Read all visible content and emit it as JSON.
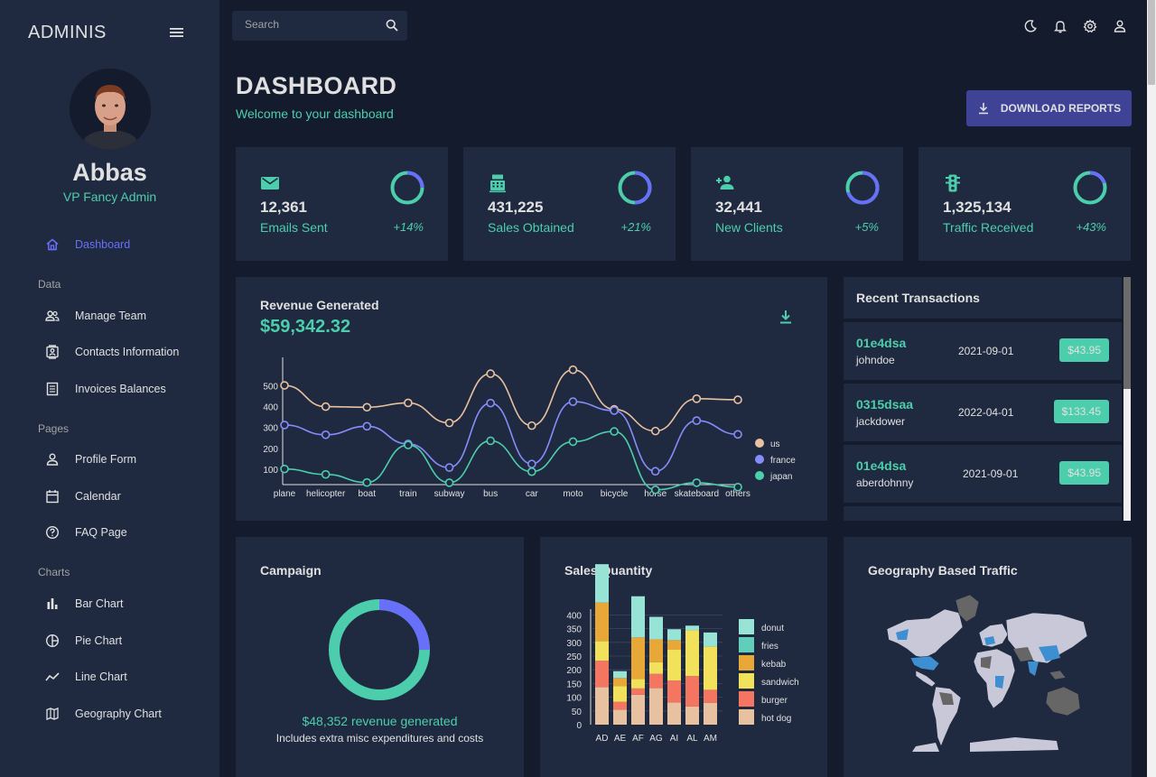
{
  "sidebar": {
    "brand": "ADMINIS",
    "user": {
      "name": "Abbas",
      "role": "VP Fancy Admin"
    },
    "items": [
      {
        "label": "Dashboard",
        "icon": "home-icon",
        "active": true
      },
      {
        "section": "Data"
      },
      {
        "label": "Manage Team",
        "icon": "people-icon"
      },
      {
        "label": "Contacts Information",
        "icon": "contacts-icon"
      },
      {
        "label": "Invoices Balances",
        "icon": "receipt-icon"
      },
      {
        "section": "Pages"
      },
      {
        "label": "Profile Form",
        "icon": "person-icon"
      },
      {
        "label": "Calendar",
        "icon": "calendar-icon"
      },
      {
        "label": "FAQ Page",
        "icon": "help-icon"
      },
      {
        "section": "Charts"
      },
      {
        "label": "Bar Chart",
        "icon": "bar-chart-icon"
      },
      {
        "label": "Pie Chart",
        "icon": "pie-chart-icon"
      },
      {
        "label": "Line Chart",
        "icon": "timeline-icon"
      },
      {
        "label": "Geography Chart",
        "icon": "map-icon"
      }
    ]
  },
  "topbar": {
    "search_placeholder": "Search",
    "icons": [
      "dark-mode-icon",
      "notifications-icon",
      "settings-icon",
      "person-icon"
    ]
  },
  "header": {
    "title": "DASHBOARD",
    "subtitle": "Welcome to your dashboard",
    "download_label": "DOWNLOAD REPORTS"
  },
  "colors": {
    "background": "#141b2d",
    "card": "#1f2a40",
    "accent_green": "#4cceac",
    "accent_blue": "#6870fa",
    "button": "#3e4396"
  },
  "stats": [
    {
      "value": "12,361",
      "label": "Emails Sent",
      "increase": "+14%",
      "icon": "email-icon",
      "progress": 0.75
    },
    {
      "value": "431,225",
      "label": "Sales Obtained",
      "increase": "+21%",
      "icon": "point-of-sale-icon",
      "progress": 0.5
    },
    {
      "value": "32,441",
      "label": "New Clients",
      "increase": "+5%",
      "icon": "person-add-icon",
      "progress": 0.3
    },
    {
      "value": "1,325,134",
      "label": "Traffic Received",
      "increase": "+43%",
      "icon": "traffic-icon",
      "progress": 0.8
    }
  ],
  "revenue": {
    "title": "Revenue Generated",
    "amount": "$59,342.32"
  },
  "transactions": {
    "title": "Recent Transactions",
    "rows": [
      {
        "id": "01e4dsa",
        "user": "johndoe",
        "date": "2021-09-01",
        "cost": "$43.95"
      },
      {
        "id": "0315dsaa",
        "user": "jackdower",
        "date": "2022-04-01",
        "cost": "$133.45"
      },
      {
        "id": "01e4dsa",
        "user": "aberdohnny",
        "date": "2021-09-01",
        "cost": "$43.95"
      }
    ]
  },
  "campaign": {
    "title": "Campaign",
    "revenue_text": "$48,352 revenue generated",
    "note": "Includes extra misc expenditures and costs",
    "progress": 0.75
  },
  "sales": {
    "title": "Sales Quantity"
  },
  "geo": {
    "title": "Geography Based Traffic"
  },
  "chart_data": [
    {
      "type": "line",
      "x": [
        "plane",
        "helicopter",
        "boat",
        "train",
        "subway",
        "bus",
        "car",
        "moto",
        "bicycle",
        "horse",
        "skateboard",
        "others"
      ],
      "ylim": [
        0,
        600
      ],
      "yticks": [
        100,
        200,
        300,
        400,
        500
      ],
      "legend": "right",
      "series": [
        {
          "name": "us",
          "color": "#e8c1a0",
          "values": [
            502,
            400,
            397,
            418,
            322,
            558,
            309,
            577,
            387,
            283,
            438,
            433
          ]
        },
        {
          "name": "france",
          "color": "#868dfb",
          "values": [
            312,
            265,
            306,
            221,
            108,
            417,
            125,
            424,
            381,
            90,
            333,
            267
          ]
        },
        {
          "name": "japan",
          "color": "#4cceac",
          "values": [
            101,
            75,
            36,
            216,
            35,
            236,
            88,
            232,
            281,
            1,
            35,
            14
          ]
        }
      ]
    },
    {
      "type": "bar",
      "categories": [
        "AD",
        "AE",
        "AF",
        "AG",
        "AI",
        "AL",
        "AM"
      ],
      "ylim": [
        0,
        450
      ],
      "yticks": [
        0,
        50,
        100,
        150,
        200,
        250,
        300,
        350,
        400
      ],
      "legend": "right",
      "series": [
        {
          "name": "hot dog",
          "color": "#e8c1a0",
          "values": [
            137,
            55,
            109,
            133,
            81,
            66,
            80
          ]
        },
        {
          "name": "burger",
          "color": "#f47560",
          "values": [
            96,
            28,
            23,
            52,
            80,
            111,
            47
          ]
        },
        {
          "name": "sandwich",
          "color": "#f1e15b",
          "values": [
            72,
            58,
            34,
            43,
            112,
            167,
            158
          ]
        },
        {
          "name": "kebab",
          "color": "#e8a838",
          "values": [
            140,
            29,
            152,
            83,
            35,
            0,
            0
          ]
        },
        {
          "name": "fries",
          "color": "#61cdbb",
          "values": [
            0,
            0,
            0,
            0,
            0,
            0,
            0
          ]
        },
        {
          "name": "donut",
          "color": "#97e3d5",
          "values": [
            140,
            25,
            150,
            82,
            40,
            17,
            51
          ]
        }
      ]
    }
  ]
}
